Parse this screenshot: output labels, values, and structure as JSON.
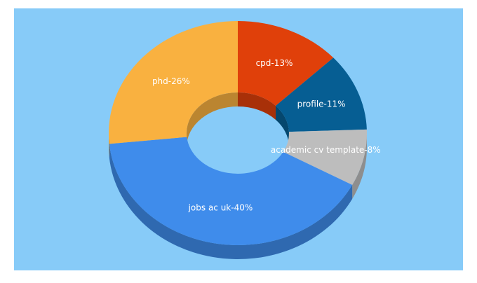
{
  "chart_data": {
    "type": "pie",
    "values": [
      13,
      11,
      8,
      40,
      26
    ],
    "value_labels": [
      "cpd-13%",
      "profile-11%",
      "academic cv template-8%",
      "jobs ac uk-40%",
      "phd-26%"
    ],
    "colors": [
      "#e0400a",
      "#065e93",
      "#bdbdbd",
      "#3f8ceb",
      "#f9b140"
    ]
  }
}
